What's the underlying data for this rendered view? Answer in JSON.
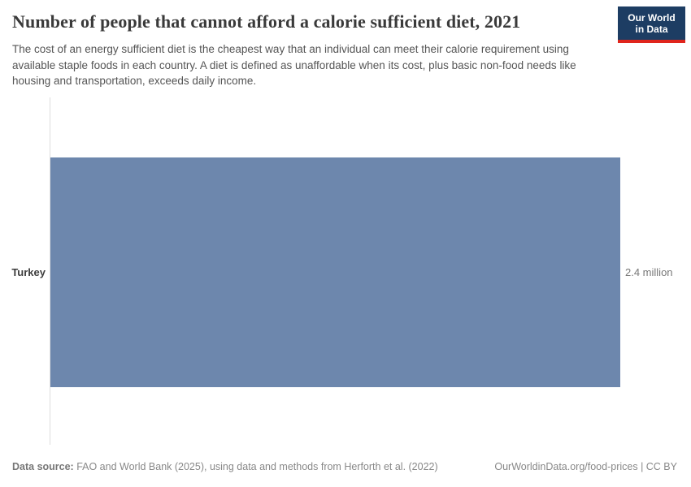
{
  "header": {
    "title": "Number of people that cannot afford a calorie sufficient diet, 2021",
    "subtitle": "The cost of an energy sufficient diet is the cheapest way that an individual can meet their calorie requirement using available staple foods in each country. A diet is defined as unaffordable when its cost, plus basic non-food needs like housing and transportation, exceeds daily income.",
    "logo": {
      "line1": "Our World",
      "line2": "in Data"
    }
  },
  "chart_data": {
    "type": "bar",
    "orientation": "horizontal",
    "title": "Number of people that cannot afford a calorie sufficient diet, 2021",
    "year": "2021",
    "categories": [
      "Turkey"
    ],
    "values": [
      2400000
    ],
    "value_labels": [
      "2.4 million"
    ],
    "xlabel": "",
    "ylabel": "",
    "xlim": [
      0,
      2400000
    ],
    "grid": false,
    "legend": false,
    "bar_color": "#6d87ad",
    "axis_color": "#dedede"
  },
  "footer": {
    "datasource_label": "Data source:",
    "datasource_text": " FAO and World Bank (2025), using data and methods from Herforth et al. (2022)",
    "license_text": "OurWorldinData.org/food-prices | CC BY"
  },
  "colors": {
    "title": "#3a3a3a",
    "subtitle": "#555555",
    "logo_background": "#1d3d63",
    "logo_accent": "#e0251c",
    "bar": "#6d87ad",
    "value_label": "#777777",
    "footer": "#888888"
  }
}
